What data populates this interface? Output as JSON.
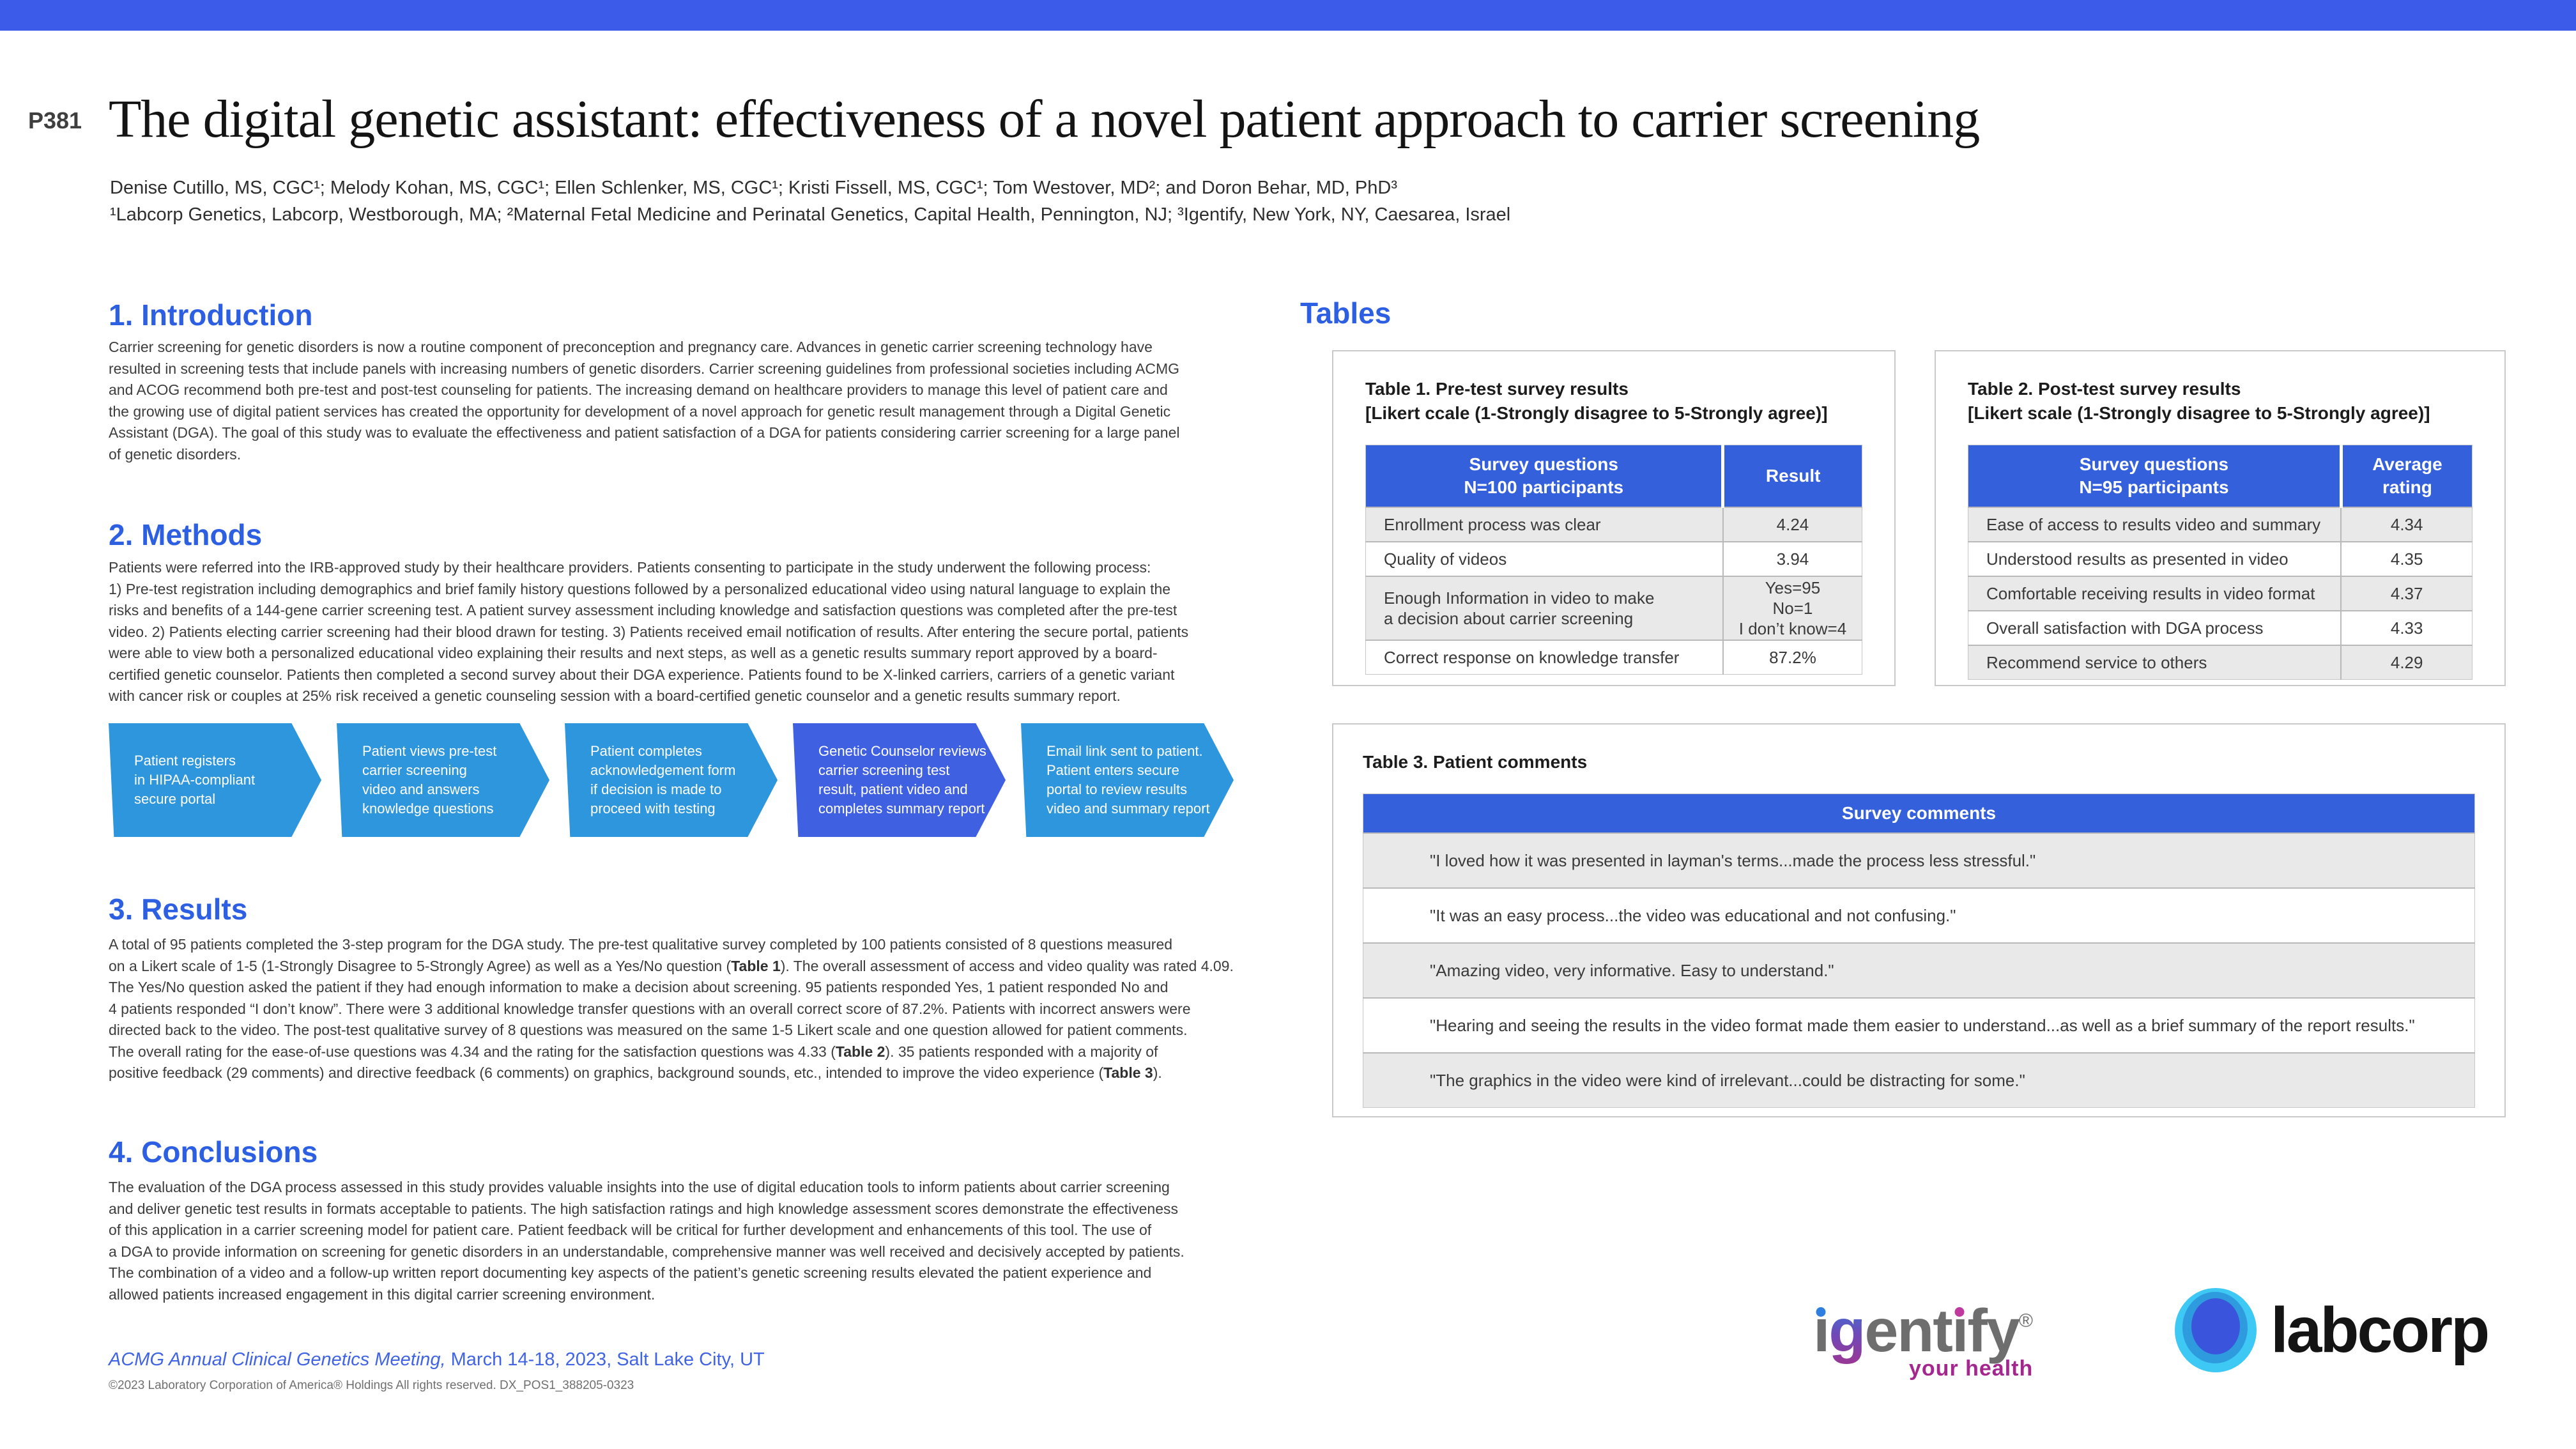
{
  "header": {
    "poster_id": "P381",
    "title": "The digital genetic assistant: effectiveness of a novel patient approach to carrier screening",
    "authors": "Denise Cutillo, MS, CGC¹; Melody Kohan, MS, CGC¹; Ellen Schlenker, MS, CGC¹; Kristi Fissell, MS, CGC¹; Tom Westover, MD²; and Doron Behar, MD, PhD³",
    "affiliations": "¹Labcorp Genetics, Labcorp, Westborough, MA; ²Maternal Fetal Medicine and Perinatal Genetics, Capital Health, Pennington, NJ; ³Igentify, New York, NY, Caesarea, Israel"
  },
  "sections": {
    "introduction": {
      "heading": "1. Introduction",
      "body": "Carrier screening for genetic disorders is now a routine component of preconception and pregnancy care. Advances in genetic carrier screening technology have\nresulted in screening tests that include panels with increasing numbers of genetic disorders. Carrier screening guidelines from professional societies including ACMG\nand ACOG recommend both pre-test and post-test counseling for patients. The increasing demand on healthcare providers to manage this level of patient care and\nthe growing use of digital patient services has created the opportunity for development of a novel approach for genetic result management through a Digital Genetic\nAssistant (DGA). The goal of this study was to evaluate the effectiveness and patient satisfaction of a DGA for patients considering carrier screening for a large panel\nof genetic disorders."
    },
    "methods": {
      "heading": "2. Methods",
      "body": "Patients were referred into the IRB-approved study by their healthcare providers. Patients consenting to participate in the study underwent the following process:\n1) Pre-test registration including demographics and brief family history questions followed by a personalized educational video using natural language to explain the\nrisks and benefits of a 144-gene carrier screening test. A patient survey assessment including knowledge and satisfaction questions was completed after the pre-test\nvideo. 2) Patients electing carrier screening had their blood drawn for testing. 3) Patients received email notification of results. After entering the secure portal, patients\nwere able to view both a personalized educational video explaining their results and next steps, as well as a genetic results summary report approved by a board-\ncertified genetic counselor. Patients then completed a second survey about their DGA experience. Patients found to be X-linked carriers, carriers of a genetic variant\nwith cancer risk or couples at 25% risk received a genetic counseling session with a board-certified genetic counselor and a genetic results summary report."
    },
    "results": {
      "heading": "3. Results",
      "body_part1": "A total of 95 patients completed the 3-step program for the DGA study. The pre-test qualitative survey completed by 100 patients consisted of 8 questions measured\non a Likert scale of 1-5 (1-Strongly Disagree to 5-Strongly Agree) as well as a Yes/No question (",
      "bold1": "Table 1",
      "body_part2": "). The overall assessment of access and video quality was rated 4.09.\nThe Yes/No question asked the patient if they had enough information to make a decision about screening. 95 patients responded Yes, 1 patient responded No and\n4 patients responded “I don’t know”. There were 3 additional knowledge transfer questions with an overall correct score of 87.2%. Patients with incorrect answers were\ndirected back to the video. The post-test qualitative survey of 8 questions was measured on the same 1-5 Likert scale and one question allowed for patient comments.\nThe overall rating for the ease-of-use questions was 4.34 and the rating for the satisfaction questions was 4.33 (",
      "bold2": "Table 2",
      "body_part3": "). 35 patients responded with a majority of\npositive feedback (29 comments) and directive feedback (6 comments) on graphics, background sounds, etc., intended to improve the video experience (",
      "bold3": "Table 3",
      "body_part4": ")."
    },
    "conclusions": {
      "heading": "4. Conclusions",
      "body": "The evaluation of the DGA process assessed in this study provides valuable insights into the use of digital education tools to inform patients about carrier screening\nand deliver genetic test results in formats acceptable to patients. The high satisfaction ratings and high knowledge assessment scores demonstrate the effectiveness\nof this application in a carrier screening model for patient care.  Patient feedback will be critical for further development and enhancements of this tool. The use of\na DGA to provide information on screening for genetic disorders in an understandable, comprehensive manner was well received and decisively accepted by patients.\nThe combination of a video and a follow-up written report documenting key aspects of the patient’s genetic screening results elevated the patient experience and\nallowed patients increased engagement in this digital carrier screening environment."
    }
  },
  "process_flow": {
    "steps": [
      {
        "label": "Patient registers\nin HIPAA-compliant\nsecure portal"
      },
      {
        "label": "Patient views pre-test\ncarrier screening\nvideo and answers\nknowledge questions"
      },
      {
        "label": "Patient completes\nacknowledgement form\nif decision is made to\nproceed with testing"
      },
      {
        "label": "Genetic Counselor reviews\ncarrier screening test\nresult, patient video and\ncompletes summary report"
      },
      {
        "label": "Email link sent to patient.\nPatient enters secure\nportal to review results\nvideo and summary report"
      }
    ]
  },
  "tables_section": {
    "heading": "Tables",
    "table1": {
      "caption": "Table 1. Pre-test survey results\n[Likert ccale (1-Strongly disagree to 5-Strongly agree)]",
      "col1_header": "Survey questions\nN=100 participants",
      "col2_header": "Result",
      "rows": [
        {
          "question": "Enrollment process was clear",
          "result": "4.24"
        },
        {
          "question": "Quality of videos",
          "result": "3.94"
        },
        {
          "question": "Enough Information in video to make\na decision about carrier screening",
          "result": "Yes=95\nNo=1\nI don’t know=4"
        },
        {
          "question": "Correct response on knowledge transfer",
          "result": "87.2%"
        }
      ]
    },
    "table2": {
      "caption": "Table 2. Post-test survey results\n[Likert scale (1-Strongly disagree to 5-Strongly agree)]",
      "col1_header": "Survey questions\nN=95 participants",
      "col2_header": "Average rating",
      "rows": [
        {
          "question": "Ease of access to results video and summary",
          "result": "4.34"
        },
        {
          "question": "Understood results as presented in video",
          "result": "4.35"
        },
        {
          "question": "Comfortable receiving results in video format",
          "result": "4.37"
        },
        {
          "question": "Overall satisfaction with DGA process",
          "result": "4.33"
        },
        {
          "question": "Recommend service to others",
          "result": "4.29"
        }
      ]
    },
    "table3": {
      "caption": "Table 3. Patient comments",
      "col_header": "Survey comments",
      "rows": [
        {
          "comment": "\"I loved how it was presented in layman's terms...made the process less stressful.\""
        },
        {
          "comment": "\"It was an easy process...the video was educational and not confusing.\""
        },
        {
          "comment": "\"Amazing video, very informative. Easy to understand.\""
        },
        {
          "comment": "\"Hearing and seeing the results in the video format made them easier to understand...as well as a brief summary of the report results.\""
        },
        {
          "comment": "\"The graphics in the video were kind of irrelevant...could be distracting for some.\""
        }
      ]
    }
  },
  "footer": {
    "meeting_italic": "ACMG Annual Clinical Genetics Meeting,",
    "meeting_rest": " March 14-18, 2023, Salt Lake City, UT",
    "copyright": "©2023 Laboratory Corporation of America® Holdings  All rights reserved.  DX_POS1_388205-0323"
  },
  "logos": {
    "igentify": {
      "brand": "igentify",
      "p1": "ı",
      "p2": "g",
      "p3": "ent",
      "p4": "ı",
      "p5": "fy",
      "registered": "®",
      "tagline": "your health"
    },
    "labcorp": {
      "wordmark": "labcorp"
    }
  },
  "colors": {
    "top_bar": "#3B5BE8",
    "section_heading": "#2D5FE3",
    "table_header": "#3560DB",
    "chevron": "#2E96DC",
    "chevron_highlight": "#4060E2",
    "row_stripe": "#E9E9EA",
    "footer_link": "#4064E4",
    "igentify_gray": "#6E6E6E",
    "igentify_magenta": "#A3278F",
    "labcorp_cyan": "#3EC8F4",
    "labcorp_mid_blue": "#2E9BDE",
    "labcorp_inner_blue": "#3A55DC"
  }
}
